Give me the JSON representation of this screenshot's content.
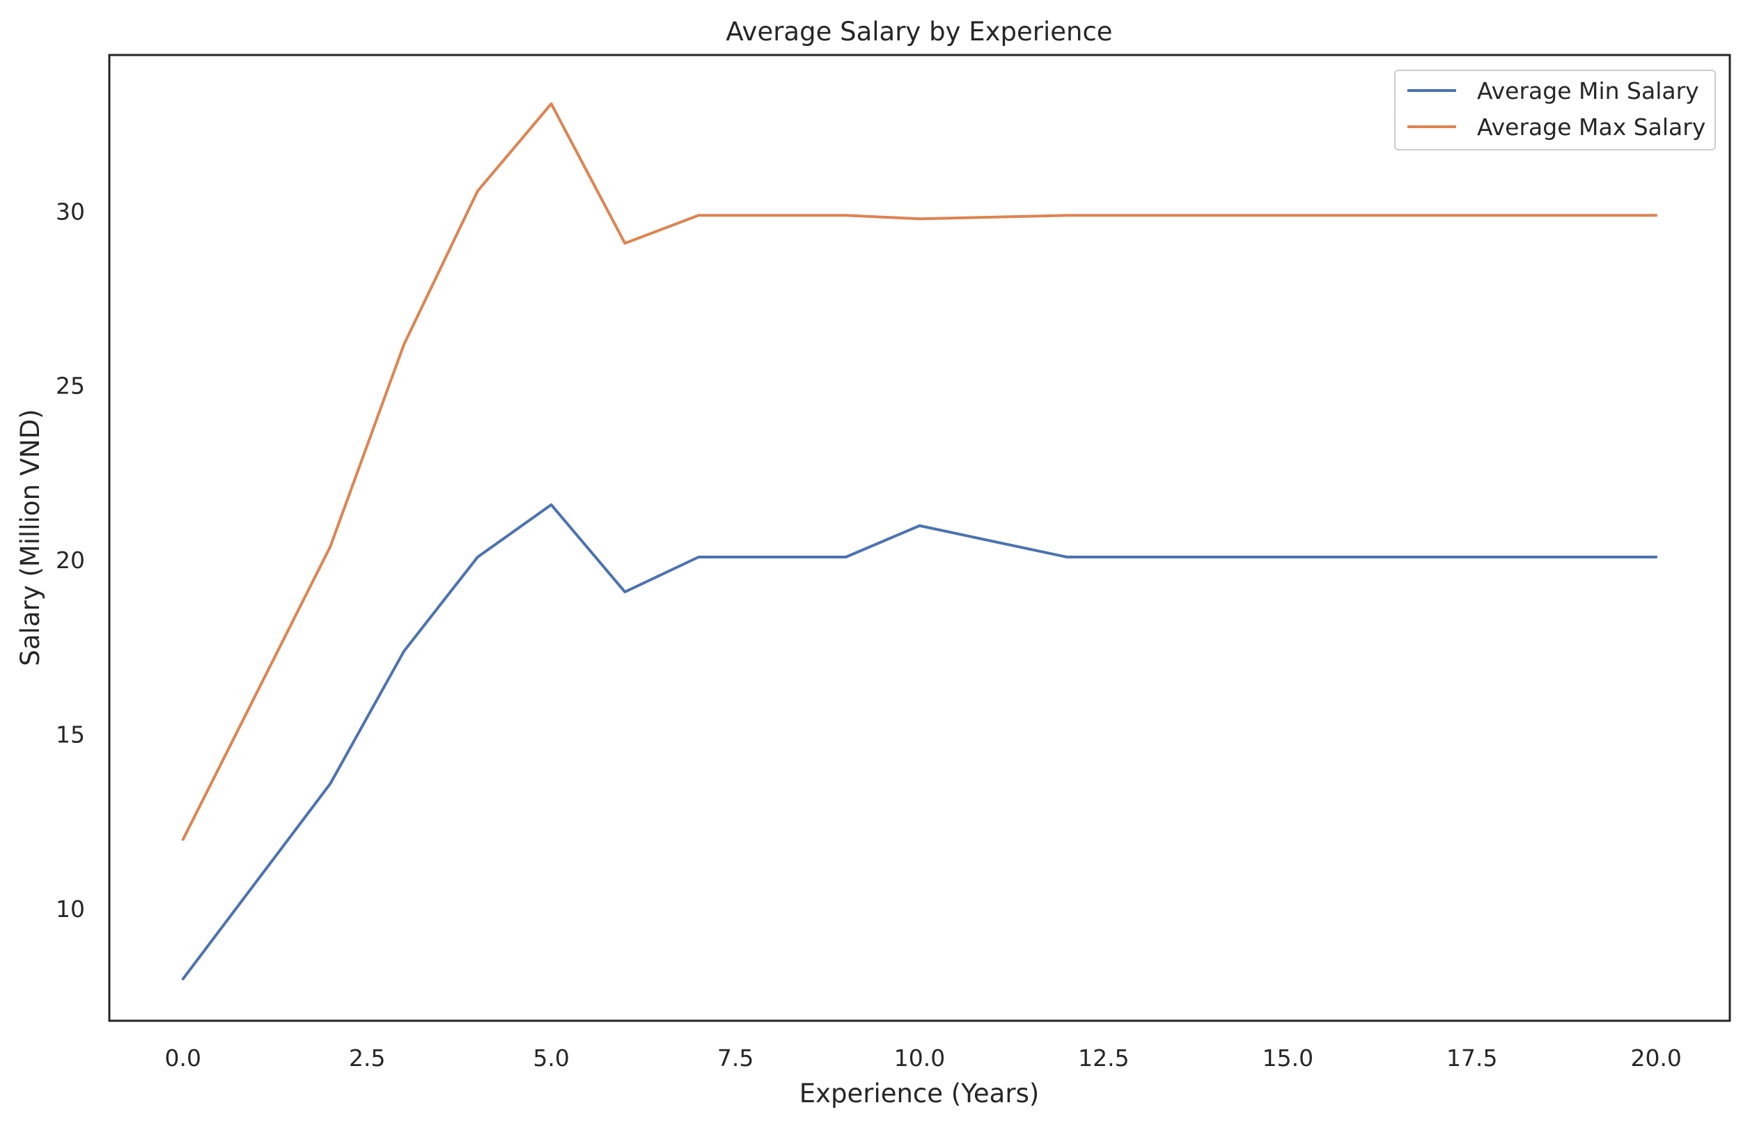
{
  "chart_data": {
    "type": "line",
    "title": "Average Salary by Experience",
    "xlabel": "Experience (Years)",
    "ylabel": "Salary (Million VND)",
    "xlim": [
      -1.0,
      21.0
    ],
    "ylim": [
      6.8,
      34.5
    ],
    "xticks": [
      0.0,
      2.5,
      5.0,
      7.5,
      10.0,
      12.5,
      15.0,
      17.5,
      20.0
    ],
    "xtick_labels": [
      "0.0",
      "2.5",
      "5.0",
      "7.5",
      "10.0",
      "12.5",
      "15.0",
      "17.5",
      "20.0"
    ],
    "yticks": [
      10,
      15,
      20,
      25,
      30
    ],
    "ytick_labels": [
      "10",
      "15",
      "20",
      "25",
      "30"
    ],
    "grid": false,
    "legend_position": "top-right",
    "series": [
      {
        "name": "Average Min Salary",
        "color": "#4c72b0",
        "x": [
          0,
          1,
          2,
          3,
          4,
          5,
          6,
          7,
          8,
          9,
          10,
          12,
          15,
          20
        ],
        "y": [
          8.0,
          10.8,
          13.6,
          17.4,
          20.1,
          21.6,
          19.1,
          20.1,
          20.1,
          20.1,
          21.0,
          20.1,
          20.1,
          20.1
        ]
      },
      {
        "name": "Average Max Salary",
        "color": "#dd8452",
        "x": [
          0,
          1,
          2,
          3,
          4,
          5,
          6,
          7,
          8,
          9,
          10,
          12,
          15,
          20
        ],
        "y": [
          12.0,
          16.2,
          20.4,
          26.2,
          30.6,
          33.1,
          29.1,
          29.9,
          29.9,
          29.9,
          29.8,
          29.9,
          29.9,
          29.9
        ]
      }
    ]
  }
}
